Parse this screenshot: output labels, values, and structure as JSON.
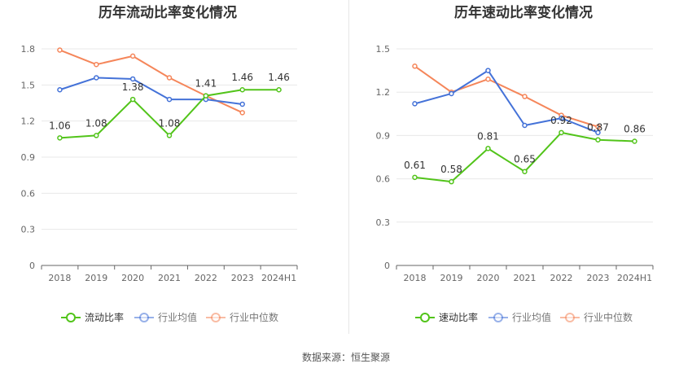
{
  "source_label": "数据来源：恒生聚源",
  "chart_data": [
    {
      "type": "line",
      "title": "历年流动比率变化情况",
      "categories": [
        "2018",
        "2019",
        "2020",
        "2021",
        "2022",
        "2023",
        "2024H1"
      ],
      "ylim": [
        0,
        1.8
      ],
      "yticks": [
        "0",
        "0.3",
        "0.6",
        "0.9",
        "1.2",
        "1.5",
        "1.8"
      ],
      "grid": true,
      "legend_position": "bottom-center",
      "series": [
        {
          "name": "流动比率",
          "color": "#52c41a",
          "values": [
            1.06,
            1.08,
            1.38,
            1.08,
            1.41,
            1.46,
            1.46
          ],
          "labels": [
            "1.06",
            "1.08",
            "1.38",
            "1.08",
            "1.41",
            "1.46",
            "1.46"
          ]
        },
        {
          "name": "行业均值",
          "color": "#4472d8",
          "values": [
            1.46,
            1.56,
            1.55,
            1.38,
            1.38,
            1.34,
            null
          ]
        },
        {
          "name": "行业中位数",
          "color": "#f5865a",
          "values": [
            1.79,
            1.67,
            1.74,
            1.56,
            1.41,
            1.27,
            null
          ]
        }
      ]
    },
    {
      "type": "line",
      "title": "历年速动比率变化情况",
      "categories": [
        "2018",
        "2019",
        "2020",
        "2021",
        "2022",
        "2023",
        "2024H1"
      ],
      "ylim": [
        0,
        1.5
      ],
      "yticks": [
        "0",
        "0.3",
        "0.6",
        "0.9",
        "1.2",
        "1.5"
      ],
      "grid": true,
      "legend_position": "bottom-center",
      "series": [
        {
          "name": "速动比率",
          "color": "#52c41a",
          "values": [
            0.61,
            0.58,
            0.81,
            0.65,
            0.92,
            0.87,
            0.86
          ],
          "labels": [
            "0.61",
            "0.58",
            "0.81",
            "0.65",
            "0.92",
            "0.87",
            "0.86"
          ]
        },
        {
          "name": "行业均值",
          "color": "#4472d8",
          "values": [
            1.12,
            1.19,
            1.35,
            0.97,
            1.02,
            0.92,
            null
          ]
        },
        {
          "name": "行业中位数",
          "color": "#f5865a",
          "values": [
            1.38,
            1.2,
            1.29,
            1.17,
            1.04,
            0.96,
            null
          ]
        }
      ]
    }
  ]
}
